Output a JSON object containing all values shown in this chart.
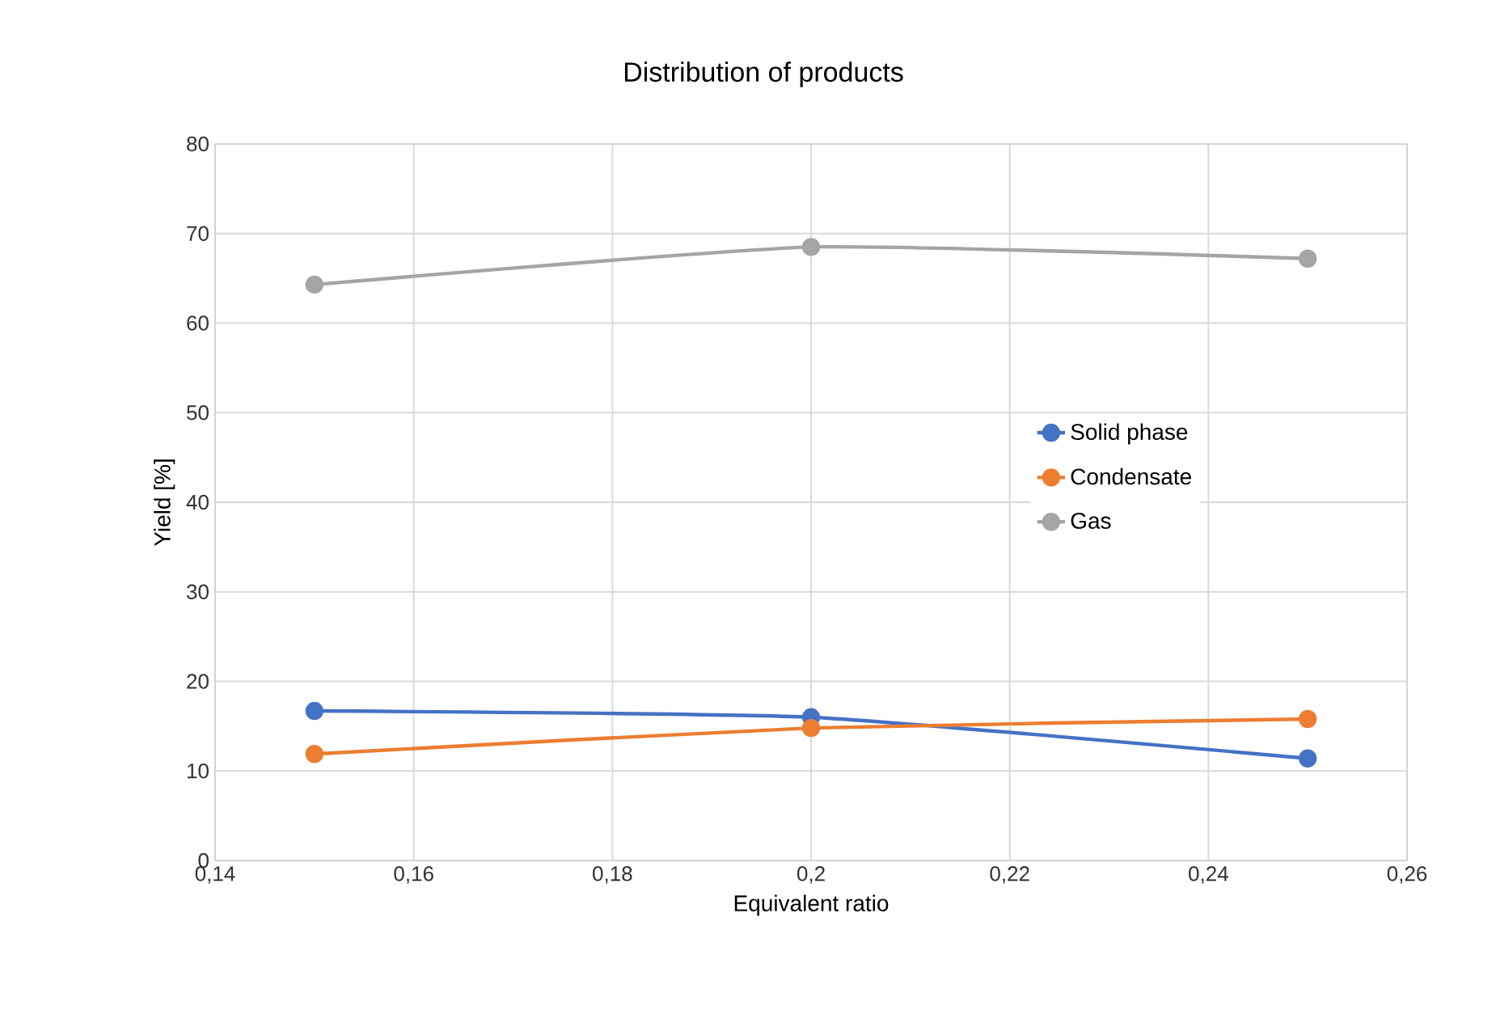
{
  "chart_data": {
    "type": "line",
    "title": "Distribution of products",
    "xlabel": "Equivalent ratio",
    "ylabel": "Yield [%]",
    "x": [
      0.15,
      0.2,
      0.25
    ],
    "series": [
      {
        "name": "Solid phase",
        "color": "#4472c4",
        "values": [
          16.7,
          16.0,
          11.4
        ]
      },
      {
        "name": "Condensate",
        "color": "#ed7d31",
        "values": [
          11.9,
          14.8,
          15.8
        ]
      },
      {
        "name": "Gas",
        "color": "#a5a5a5",
        "values": [
          64.3,
          68.5,
          67.2
        ]
      }
    ],
    "xlim": [
      0.14,
      0.26
    ],
    "xticks": [
      {
        "value": 0.14,
        "label": "0,14"
      },
      {
        "value": 0.16,
        "label": "0,16"
      },
      {
        "value": 0.18,
        "label": "0,18"
      },
      {
        "value": 0.2,
        "label": "0,2"
      },
      {
        "value": 0.22,
        "label": "0,22"
      },
      {
        "value": 0.24,
        "label": "0,24"
      },
      {
        "value": 0.26,
        "label": "0,26"
      }
    ],
    "ylim": [
      0,
      80
    ],
    "yticks": [
      0,
      10,
      20,
      30,
      40,
      50,
      60,
      70,
      80
    ],
    "grid": true,
    "legend": "center right",
    "marker": "circle",
    "line_style": "solid"
  }
}
